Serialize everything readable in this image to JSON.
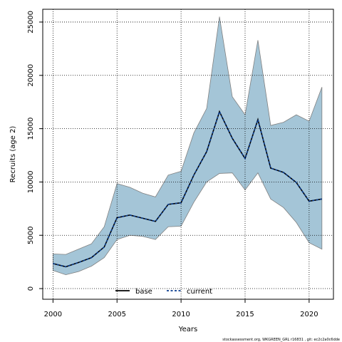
{
  "chart_data": {
    "type": "area",
    "xlabel": "Years",
    "ylabel": "Recruits (age 2)",
    "xlim": [
      1999.2,
      2021.9
    ],
    "ylim": [
      -1000,
      26200
    ],
    "x_ticks": [
      2000,
      2005,
      2010,
      2015,
      2020
    ],
    "y_ticks": [
      0,
      5000,
      10000,
      15000,
      20000,
      25000
    ],
    "grid": true,
    "legend_position": "bottom-center",
    "x": [
      2000,
      2001,
      2002,
      2003,
      2004,
      2005,
      2006,
      2007,
      2008,
      2009,
      2010,
      2011,
      2012,
      2013,
      2014,
      2015,
      2016,
      2017,
      2018,
      2019,
      2020,
      2021
    ],
    "band": {
      "upper": [
        3250,
        3200,
        3700,
        4200,
        5800,
        9850,
        9500,
        8950,
        8600,
        10650,
        11000,
        14600,
        16900,
        25500,
        18000,
        16300,
        23300,
        15300,
        15600,
        16300,
        15700,
        18900
      ],
      "lower": [
        1700,
        1300,
        1600,
        2100,
        2900,
        4600,
        5000,
        4900,
        4600,
        5800,
        5850,
        8100,
        10000,
        10800,
        10850,
        9250,
        10850,
        8400,
        7600,
        6200,
        4300,
        3700
      ],
      "color": "#a4c5d7",
      "edge_color": "#808080"
    },
    "series": [
      {
        "name": "base",
        "style": "solid",
        "color": "#000000",
        "values": [
          2350,
          2050,
          2450,
          2900,
          3900,
          6650,
          6900,
          6600,
          6300,
          7900,
          8050,
          10650,
          12850,
          16600,
          14100,
          12200,
          15850,
          11300,
          10900,
          9950,
          8200,
          8400
        ]
      },
      {
        "name": "current",
        "style": "dashed",
        "color": "#0a3d8f",
        "values": [
          2350,
          2050,
          2450,
          2900,
          3900,
          6650,
          6900,
          6600,
          6300,
          7900,
          8050,
          10650,
          12850,
          16600,
          14100,
          12200,
          15850,
          11300,
          10900,
          9950,
          8200,
          8400
        ]
      }
    ]
  },
  "footnote": "stockassessment.org, WKGREEN_GRL r16831 , git: ec2c2a0c6dde"
}
